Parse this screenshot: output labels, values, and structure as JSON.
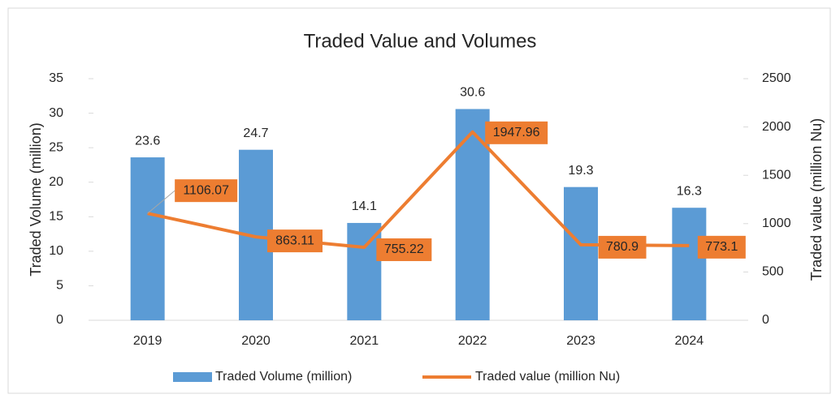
{
  "chart_data": {
    "type": "bar",
    "title": "Traded Value and Volumes",
    "categories": [
      "2019",
      "2020",
      "2021",
      "2022",
      "2023",
      "2024"
    ],
    "series": [
      {
        "name": "Traded Volume (million)",
        "type": "bar",
        "color": "#5b9bd5",
        "values": [
          23.6,
          24.7,
          14.1,
          30.6,
          19.3,
          16.3
        ]
      },
      {
        "name": "Traded value (million Nu)",
        "type": "line",
        "axis": "y2",
        "color": "#ed7d31",
        "values": [
          1106.07,
          863.11,
          755.22,
          1947.96,
          780.9,
          773.1
        ]
      }
    ],
    "ylabel": "Traded Volume (million)",
    "y2label": "Traded value (million Nu)",
    "ylim": [
      0,
      35
    ],
    "yticks": [
      0,
      5,
      10,
      15,
      20,
      25,
      30,
      35
    ],
    "y2lim": [
      0,
      2500
    ],
    "y2ticks": [
      0,
      500,
      1000,
      1500,
      2000,
      2500
    ],
    "legend": "bottom"
  }
}
